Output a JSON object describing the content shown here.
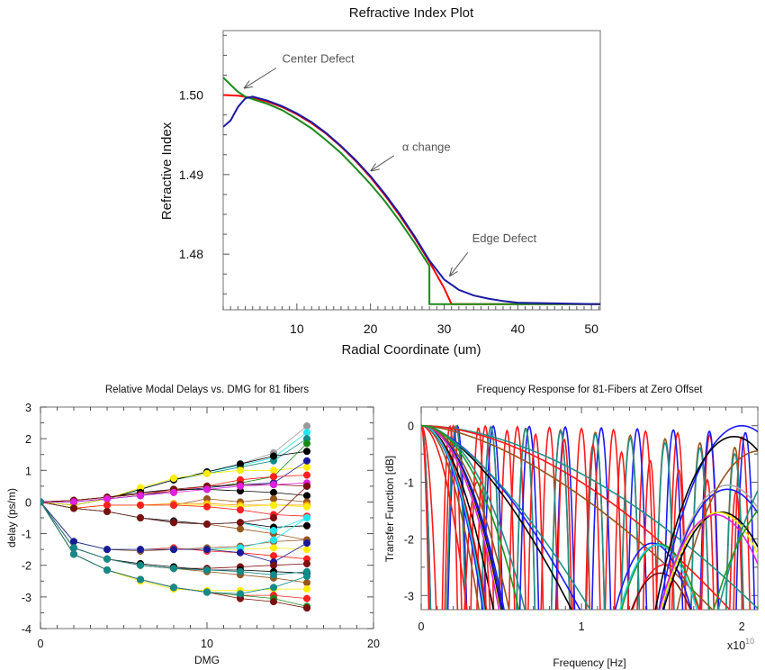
{
  "chart_data": [
    {
      "type": "line",
      "title": "Refractive Index Plot",
      "xlabel": "Radial Coordinate (um)",
      "ylabel": "Refractive Index",
      "xlim": [
        0,
        51.2
      ],
      "ylim": [
        1.473,
        1.5081
      ],
      "xticks": [
        10,
        20,
        30,
        40,
        50
      ],
      "xtick_labels": [
        "10",
        "20",
        "30",
        "40",
        "50"
      ],
      "xminor_step": 1,
      "yticks": [
        1.48,
        1.49,
        1.5
      ],
      "ytick_labels": [
        "1.48",
        "1.49",
        "1.50"
      ],
      "yminor_step": 0.0025,
      "grid": false,
      "series": [
        {
          "name": "alpha change",
          "color": "#ff0000",
          "x": [
            0,
            2,
            4,
            6,
            8,
            10,
            12,
            14,
            16,
            18,
            20,
            22,
            24,
            26,
            28,
            30,
            31,
            51.2
          ],
          "y": [
            1.5,
            1.49992,
            1.49965,
            1.49917,
            1.49849,
            1.49758,
            1.49646,
            1.49511,
            1.49352,
            1.4917,
            1.48965,
            1.48735,
            1.48481,
            1.48203,
            1.47901,
            1.47573,
            1.4737,
            1.4737
          ]
        },
        {
          "name": "center defect",
          "color": "#1a8a1a",
          "x": [
            0,
            1,
            2,
            3,
            4,
            6,
            8,
            10,
            12,
            14,
            16,
            18,
            20,
            22,
            24,
            26,
            28,
            28,
            51.2
          ],
          "y": [
            1.5022,
            1.5013,
            1.5004,
            1.4998,
            1.4995,
            1.4989,
            1.4981,
            1.497,
            1.4958,
            1.4943,
            1.4927,
            1.4908,
            1.4888,
            1.4866,
            1.4841,
            1.4814,
            1.4785,
            1.4737,
            1.4737
          ]
        },
        {
          "name": "edge defect",
          "color": "#1a1aa0",
          "x": [
            0,
            1,
            2,
            3,
            4,
            6,
            8,
            10,
            12,
            14,
            16,
            18,
            20,
            22,
            24,
            26,
            28,
            30,
            32,
            34,
            36,
            38,
            40,
            45,
            51.2
          ],
          "y": [
            1.496,
            1.4968,
            1.4985,
            1.4996,
            1.4998,
            1.4993,
            1.4986,
            1.4977,
            1.4966,
            1.4952,
            1.4936,
            1.4918,
            1.4898,
            1.4875,
            1.485,
            1.4822,
            1.4792,
            1.4768,
            1.4755,
            1.4748,
            1.4744,
            1.4741,
            1.4739,
            1.4738,
            1.4737
          ]
        }
      ],
      "annotations": [
        {
          "text": "Center Defect",
          "text_at": [
            8.0,
            1.5041
          ],
          "arrow_from": [
            7.2,
            1.5034
          ],
          "arrow_to": [
            2.9,
            1.5009
          ]
        },
        {
          "text": "α change",
          "text_at": [
            24.3,
            1.493
          ],
          "arrow_from": [
            23.2,
            1.4924
          ],
          "arrow_to": [
            20.1,
            1.4905
          ]
        },
        {
          "text": "Edge Defect",
          "text_at": [
            33.8,
            1.4815
          ],
          "arrow_from": [
            33.2,
            1.4802
          ],
          "arrow_to": [
            30.8,
            1.4773
          ]
        }
      ]
    },
    {
      "type": "line",
      "markers": true,
      "title": "Relative Modal Delays vs. DMG for 81 fibers",
      "xlabel": "DMG",
      "ylabel": "delay (ps/m)",
      "xlim": [
        0,
        20
      ],
      "ylim": [
        -4,
        3
      ],
      "xticks": [
        0,
        10,
        20
      ],
      "xtick_labels": [
        "0",
        "10",
        "20"
      ],
      "xminor_step": 1,
      "yticks": [
        -4,
        -3,
        -2,
        -1,
        0,
        1,
        2,
        3
      ],
      "ytick_labels": [
        "-4",
        "-3",
        "-2",
        "-1",
        "0",
        "1",
        "2",
        "3"
      ],
      "yminor_step": 0.5,
      "x": [
        0,
        2,
        4,
        6,
        8,
        10,
        12,
        14,
        16
      ],
      "series": [
        {
          "color": "#999999",
          "values": [
            0,
            -0.1,
            0.1,
            0.4,
            0.7,
            0.95,
            1.2,
            1.55,
            2.4
          ]
        },
        {
          "color": "#22e5ee",
          "values": [
            0,
            -0.1,
            0.1,
            0.4,
            0.7,
            0.95,
            1.15,
            1.4,
            2.2
          ]
        },
        {
          "color": "#138a8a",
          "values": [
            0,
            -0.1,
            0.1,
            0.4,
            0.7,
            0.9,
            1.1,
            1.3,
            2.0
          ]
        },
        {
          "color": "#000000",
          "values": [
            0,
            -0.1,
            0.1,
            0.4,
            0.7,
            0.95,
            1.2,
            1.45,
            1.6
          ]
        },
        {
          "color": "#ffee00",
          "values": [
            0,
            -0.1,
            0.1,
            0.45,
            0.75,
            0.9,
            1.0,
            1.0,
            1.1
          ]
        },
        {
          "color": "#188a18",
          "values": [
            0,
            0,
            0.1,
            0.2,
            0.35,
            0.45,
            0.6,
            0.8,
            1.85
          ]
        },
        {
          "color": "#1a1a99",
          "values": [
            0,
            0,
            0.1,
            0.2,
            0.35,
            0.45,
            0.55,
            0.6,
            1.3
          ]
        },
        {
          "color": "#ff2020",
          "values": [
            0,
            0.05,
            0.15,
            0.25,
            0.35,
            0.5,
            0.7,
            0.8,
            0.85
          ]
        },
        {
          "color": "#000000",
          "values": [
            0,
            0.05,
            0.15,
            0.3,
            0.4,
            0.4,
            0.35,
            0.3,
            0.2
          ]
        },
        {
          "color": "#7a1010",
          "values": [
            0,
            0.05,
            0.15,
            0.25,
            0.4,
            0.5,
            0.55,
            0.55,
            0.5
          ]
        },
        {
          "color": "#e020e0",
          "values": [
            0,
            0,
            0.1,
            0.2,
            0.3,
            0.4,
            0.5,
            0.55,
            0.6
          ]
        },
        {
          "color": "#95561e",
          "values": [
            0,
            -0.2,
            -0.1,
            -0.1,
            -0.1,
            0.1,
            0.0,
            0.1,
            0.0
          ]
        },
        {
          "color": "#ff9900",
          "values": [
            0,
            -0.2,
            -0.1,
            -0.1,
            -0.05,
            -0.05,
            -0.1,
            -0.1,
            -0.1
          ]
        },
        {
          "color": "#ffee00",
          "values": [
            0,
            -0.2,
            -0.1,
            -0.1,
            -0.1,
            -0.1,
            -0.15,
            -0.1,
            -0.15
          ]
        },
        {
          "color": "#ff2020",
          "values": [
            0,
            -0.2,
            -0.1,
            -0.1,
            -0.1,
            -0.15,
            -0.25,
            -0.4,
            -0.45
          ]
        },
        {
          "color": "#000000",
          "values": [
            0,
            -0.2,
            -0.3,
            -0.5,
            -0.6,
            -0.7,
            -0.65,
            -0.8,
            -0.75
          ]
        },
        {
          "color": "#95561e",
          "values": [
            0,
            -0.2,
            -0.3,
            -0.5,
            -0.65,
            -0.7,
            -0.85,
            -1.0,
            -1.2
          ]
        },
        {
          "color": "#22e5ee",
          "values": [
            0,
            -0.2,
            -0.3,
            -0.5,
            -0.65,
            -0.7,
            -0.65,
            -0.9,
            -0.5
          ]
        },
        {
          "color": "#7a1010",
          "values": [
            0,
            -0.2,
            -0.3,
            -0.5,
            -0.65,
            -0.7,
            -0.65,
            -0.5,
            0.5
          ]
        },
        {
          "color": "#95561e",
          "values": [
            0,
            -1.25,
            -1.5,
            -1.55,
            -1.5,
            -1.45,
            -1.4,
            -1.25,
            -1.2
          ]
        },
        {
          "color": "#ff2020",
          "values": [
            0,
            -1.25,
            -1.5,
            -1.5,
            -1.45,
            -1.55,
            -1.6,
            -1.7,
            -1.8
          ]
        },
        {
          "color": "#ffee00",
          "values": [
            0,
            -1.25,
            -1.5,
            -1.5,
            -1.5,
            -1.5,
            -1.5,
            -1.45,
            -1.5
          ]
        },
        {
          "color": "#22e5ee",
          "values": [
            0,
            -1.25,
            -1.5,
            -1.5,
            -1.5,
            -1.5,
            -1.45,
            -1.2,
            -0.5
          ]
        },
        {
          "color": "#1a1a99",
          "values": [
            0,
            -1.25,
            -1.5,
            -1.5,
            -1.5,
            -1.5,
            -1.6,
            -1.9,
            -1.3
          ]
        },
        {
          "color": "#7a1010",
          "values": [
            0,
            -1.45,
            -1.8,
            -2.0,
            -2.1,
            -2.1,
            -2.05,
            -2.0,
            -1.95
          ]
        },
        {
          "color": "#000000",
          "values": [
            0,
            -1.45,
            -1.8,
            -1.95,
            -2.05,
            -2.15,
            -2.15,
            -2.2,
            -2.25
          ]
        },
        {
          "color": "#95561e",
          "values": [
            0,
            -1.45,
            -1.8,
            -2.0,
            -2.1,
            -2.2,
            -2.3,
            -2.4,
            -2.55
          ]
        },
        {
          "color": "#138a8a",
          "values": [
            0,
            -1.45,
            -1.8,
            -2.0,
            -2.1,
            -2.15,
            -2.2,
            -2.3,
            -2.2
          ]
        },
        {
          "color": "#ffee00",
          "values": [
            0,
            -1.65,
            -2.15,
            -2.5,
            -2.75,
            -2.8,
            -2.8,
            -2.75,
            -2.75
          ]
        },
        {
          "color": "#ff2020",
          "values": [
            0,
            -1.65,
            -2.15,
            -2.45,
            -2.7,
            -2.85,
            -2.95,
            -2.95,
            -3.05
          ]
        },
        {
          "color": "#188a18",
          "values": [
            0,
            -1.65,
            -2.15,
            -2.45,
            -2.7,
            -2.85,
            -2.95,
            -3.05,
            -3.3
          ]
        },
        {
          "color": "#7a1010",
          "values": [
            0,
            -1.65,
            -2.15,
            -2.45,
            -2.7,
            -2.85,
            -3.05,
            -3.15,
            -3.35
          ]
        },
        {
          "color": "#138a8a",
          "values": [
            0,
            -1.65,
            -2.15,
            -2.45,
            -2.7,
            -2.85,
            -2.9,
            -2.7,
            -2.35
          ]
        }
      ]
    },
    {
      "type": "line",
      "title": "Frequency Response for 81-Fibers at Zero Offset",
      "xlabel": "Frequency [Hz]",
      "ylabel": "Transfer Function [dB]",
      "x_multiplier_base": "x10",
      "x_multiplier_exp": "10",
      "xlim": [
        0,
        2.1
      ],
      "ylim": [
        -3.25,
        0.33
      ],
      "xticks": [
        0,
        1,
        2
      ],
      "xtick_labels": [
        "0",
        "1",
        "2"
      ],
      "xminor_step": 0.1,
      "yticks": [
        0,
        -1,
        -2,
        -3
      ],
      "ytick_labels": [
        "0",
        "-1",
        "-2",
        "-3"
      ],
      "yminor_step": 0.5,
      "model": "H_dB(f) = 10*log10(|a + (1-a)*exp(i*2*pi*f*tau)|^2) - c*f^p, f in units of 1e10 Hz",
      "series": [
        {
          "color": "#ff1a1a",
          "a": 0.55,
          "tau": 5.0,
          "c": 0.05,
          "p": 2
        },
        {
          "color": "#1a1aff",
          "a": 0.55,
          "tau": 4.45,
          "c": 0.03,
          "p": 2
        },
        {
          "color": "#95561e",
          "a": 0.6,
          "tau": 4.6,
          "c": 0.1,
          "p": 2
        },
        {
          "color": "#20908a",
          "a": 0.6,
          "tau": 4.6,
          "c": 0.13,
          "p": 2
        },
        {
          "color": "#ff1a1a",
          "a": 0.6,
          "tau": 5.6,
          "c": 0.3,
          "p": 2
        },
        {
          "color": "#20908a",
          "a": 1,
          "tau": 0,
          "c": 0.85,
          "p": 1.8
        },
        {
          "color": "#ff1a1a",
          "a": 1,
          "tau": 0,
          "c": 1.0,
          "p": 1.8
        },
        {
          "color": "#95561e",
          "a": 1,
          "tau": 0,
          "c": 1.25,
          "p": 1.6
        },
        {
          "color": "#000000",
          "a": 1,
          "tau": 0,
          "c": 3.6,
          "p": 1.6
        },
        {
          "color": "#1a1aff",
          "a": 1,
          "tau": 0,
          "c": 3.3,
          "p": 1.6
        },
        {
          "color": "#20908a",
          "a": 1,
          "tau": 0,
          "c": 3.0,
          "p": 1.5
        },
        {
          "color": "#000000",
          "a": 1,
          "tau": 0,
          "c": 16,
          "p": 2
        },
        {
          "color": "#ff1a1a",
          "a": 1,
          "tau": 0,
          "c": 40,
          "p": 2
        },
        {
          "color": "#95561e",
          "a": 1,
          "tau": 0,
          "c": 25,
          "p": 2
        },
        {
          "color": "#1a9a1a",
          "a": 1,
          "tau": 0,
          "c": 20,
          "p": 2
        },
        {
          "color": "#ff1a1a",
          "a": 0.6,
          "tau": 2.8,
          "c": 8,
          "p": 2
        },
        {
          "color": "#1a9a1a",
          "a": 0.5,
          "tau": 0.64,
          "c": 0.9,
          "p": 2
        },
        {
          "color": "#ff1a1a",
          "a": 0.5,
          "tau": 0.62,
          "c": 1.0,
          "p": 2
        },
        {
          "color": "#1a1aff",
          "a": 0.5,
          "tau": 0.66,
          "c": 0.95,
          "p": 2
        },
        {
          "color": "#7a1010",
          "a": 0.5,
          "tau": 0.63,
          "c": 1.1,
          "p": 2
        },
        {
          "color": "#22d0e0",
          "a": 0.5,
          "tau": 0.645,
          "c": 0.92,
          "p": 2
        },
        {
          "color": "#1a1aff",
          "a": 0.5,
          "tau": 0.5,
          "c": 0.0,
          "p": 2
        },
        {
          "color": "#000000",
          "a": 0.5,
          "tau": 0.51,
          "c": 0.05,
          "p": 2
        },
        {
          "color": "#aaaaaa",
          "a": 0.5,
          "tau": 0.51,
          "c": 0.28,
          "p": 2
        },
        {
          "color": "#1a1aff",
          "a": 0.5,
          "tau": 0.51,
          "c": 0.3,
          "p": 2
        },
        {
          "color": "#000000",
          "a": 0.5,
          "tau": 0.515,
          "c": 0.42,
          "p": 2
        },
        {
          "color": "#ffee00",
          "a": 0.5,
          "tau": 0.52,
          "c": 0.43,
          "p": 2
        },
        {
          "color": "#e020e0",
          "a": 0.5,
          "tau": 0.525,
          "c": 0.45,
          "p": 2
        },
        {
          "color": "#95561e",
          "a": 0.5,
          "tau": 0.47,
          "c": 0.1,
          "p": 2
        },
        {
          "color": "#20908a",
          "a": 0.5,
          "tau": 0.4,
          "c": 0.0,
          "p": 2
        },
        {
          "color": "#1a9a1a",
          "a": 0.5,
          "tau": 0.42,
          "c": 0.2,
          "p": 2
        }
      ]
    }
  ]
}
